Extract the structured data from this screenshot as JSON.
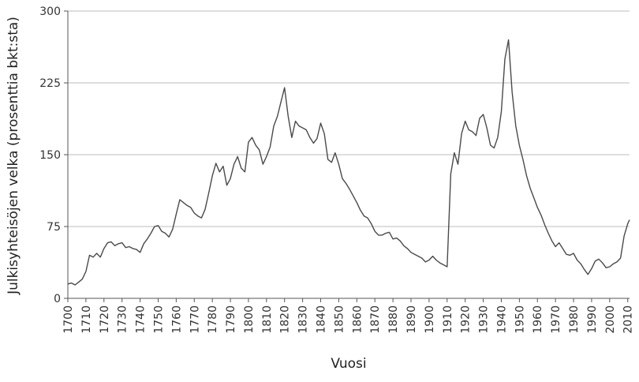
{
  "chart_data": {
    "type": "line",
    "title": "",
    "xlabel": "Vuosi",
    "ylabel": "Julkisyhteisöjen velka (prosenttia bkt:sta)",
    "xlim": [
      1700,
      2011
    ],
    "ylim": [
      0,
      300
    ],
    "y_ticks": [
      "0",
      "75",
      "150",
      "225",
      "300"
    ],
    "x_ticks": [
      "1700",
      "1710",
      "1720",
      "1730",
      "1740",
      "1750",
      "1760",
      "1770",
      "1780",
      "1790",
      "1800",
      "1810",
      "1820",
      "1830",
      "1840",
      "1850",
      "1860",
      "1870",
      "1880",
      "1890",
      "1900",
      "1910",
      "1920",
      "1930",
      "1940",
      "1950",
      "1960",
      "1970",
      "1980",
      "1990",
      "2000",
      "2010"
    ],
    "grid": "horizontal",
    "x": [
      1700,
      1702,
      1704,
      1706,
      1708,
      1710,
      1712,
      1714,
      1716,
      1718,
      1720,
      1722,
      1724,
      1726,
      1728,
      1730,
      1732,
      1734,
      1736,
      1738,
      1740,
      1742,
      1744,
      1746,
      1748,
      1750,
      1752,
      1754,
      1756,
      1758,
      1760,
      1762,
      1764,
      1766,
      1768,
      1770,
      1772,
      1774,
      1776,
      1778,
      1780,
      1782,
      1784,
      1786,
      1788,
      1790,
      1792,
      1794,
      1796,
      1798,
      1800,
      1802,
      1804,
      1806,
      1808,
      1810,
      1812,
      1814,
      1816,
      1818,
      1820,
      1822,
      1824,
      1826,
      1828,
      1830,
      1832,
      1834,
      1836,
      1838,
      1840,
      1842,
      1844,
      1846,
      1848,
      1850,
      1852,
      1854,
      1856,
      1858,
      1860,
      1862,
      1864,
      1866,
      1868,
      1870,
      1872,
      1874,
      1876,
      1878,
      1880,
      1882,
      1884,
      1886,
      1888,
      1890,
      1892,
      1894,
      1896,
      1898,
      1900,
      1902,
      1904,
      1906,
      1908,
      1910,
      1912,
      1914,
      1916,
      1918,
      1920,
      1922,
      1924,
      1926,
      1928,
      1930,
      1932,
      1934,
      1936,
      1938,
      1940,
      1942,
      1944,
      1946,
      1948,
      1950,
      1952,
      1954,
      1956,
      1958,
      1960,
      1962,
      1964,
      1966,
      1968,
      1970,
      1972,
      1974,
      1976,
      1978,
      1980,
      1982,
      1984,
      1986,
      1988,
      1990,
      1992,
      1994,
      1996,
      1998,
      2000,
      2002,
      2004,
      2006,
      2008,
      2010,
      2011
    ],
    "series": [
      {
        "values": [
          15,
          16,
          14,
          17,
          20,
          28,
          45,
          43,
          47,
          43,
          52,
          58,
          59,
          55,
          57,
          58,
          53,
          54,
          52,
          51,
          48,
          57,
          62,
          68,
          75,
          76,
          70,
          68,
          64,
          72,
          88,
          103,
          100,
          97,
          95,
          89,
          86,
          84,
          93,
          110,
          128,
          141,
          132,
          138,
          118,
          125,
          140,
          148,
          136,
          132,
          163,
          168,
          160,
          155,
          140,
          148,
          158,
          180,
          190,
          205,
          220,
          190,
          168,
          185,
          180,
          178,
          176,
          168,
          162,
          167,
          183,
          172,
          145,
          142,
          152,
          140,
          125,
          120,
          114,
          107,
          100,
          92,
          86,
          84,
          78,
          70,
          66,
          66,
          68,
          69,
          62,
          63,
          60,
          55,
          52,
          48,
          46,
          44,
          42,
          38,
          40,
          44,
          40,
          37,
          35,
          33,
          130,
          152,
          140,
          172,
          185,
          176,
          174,
          170,
          188,
          192,
          178,
          160,
          157,
          168,
          195,
          250,
          270,
          215,
          180,
          160,
          145,
          128,
          115,
          105,
          95,
          87,
          77,
          68,
          60,
          54,
          58,
          52,
          46,
          45,
          47,
          40,
          36,
          30,
          25,
          31,
          39,
          41,
          37,
          32,
          33,
          36,
          38,
          42,
          65,
          78,
          82
        ]
      }
    ]
  }
}
